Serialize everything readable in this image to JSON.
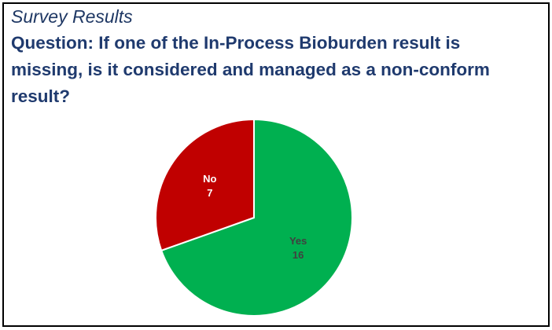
{
  "chart_data": {
    "type": "pie",
    "header": "Survey Results",
    "title": "Question: If one of the In-Process Bioburden result is missing, is it considered and managed as a non-conform result?",
    "categories": [
      "Yes",
      "No"
    ],
    "values": [
      16,
      7
    ],
    "colors": [
      "#00b050",
      "#c00000"
    ],
    "label_colors": [
      "#404040",
      "#ffffff"
    ]
  }
}
